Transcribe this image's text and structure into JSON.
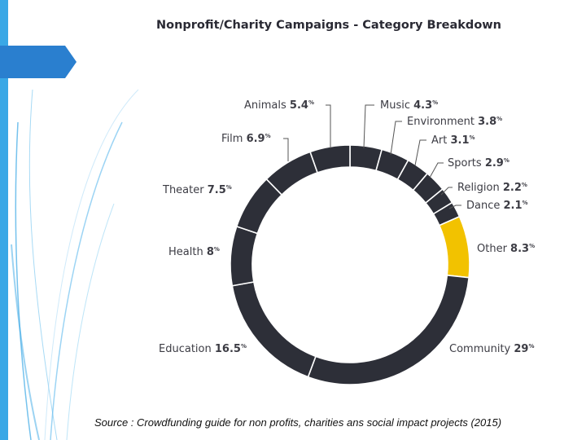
{
  "source_note": "Source : Crowdfunding guide for non profits, charities ans social impact projects (2015)",
  "colors": {
    "slice": "#2d2f38",
    "highlight": "#f2c200",
    "accent": "#3aa8e6",
    "label": "#3c3c44"
  },
  "chart_data": {
    "type": "pie",
    "style": "donut",
    "title": "Nonprofit/Charity Campaigns - Category Breakdown",
    "unit": "%",
    "slices": [
      {
        "label": "Music",
        "value": 4.3
      },
      {
        "label": "Environment",
        "value": 3.8
      },
      {
        "label": "Art",
        "value": 3.1
      },
      {
        "label": "Sports",
        "value": 2.9
      },
      {
        "label": "Religion",
        "value": 2.2
      },
      {
        "label": "Dance",
        "value": 2.1
      },
      {
        "label": "Other",
        "value": 8.3,
        "highlight": true
      },
      {
        "label": "Community",
        "value": 29
      },
      {
        "label": "Education",
        "value": 16.5
      },
      {
        "label": "Health",
        "value": 8
      },
      {
        "label": "Theater",
        "value": 7.5
      },
      {
        "label": "Film",
        "value": 6.9
      },
      {
        "label": "Animals",
        "value": 5.4
      }
    ]
  }
}
